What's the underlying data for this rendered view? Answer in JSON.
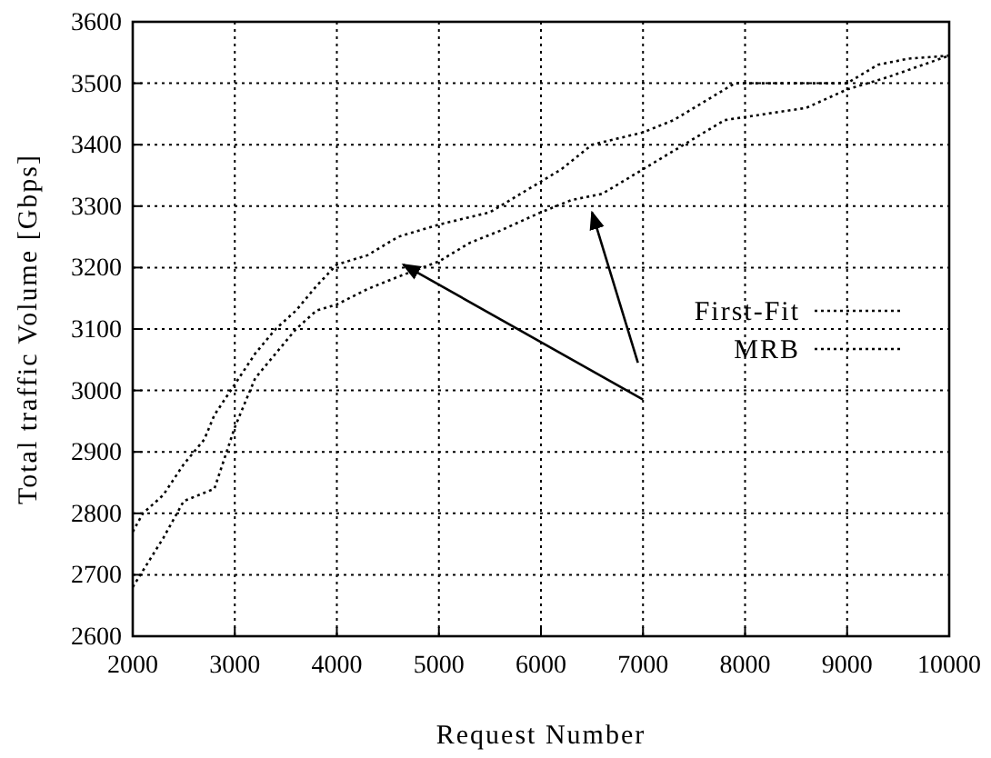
{
  "chart_data": {
    "type": "line",
    "xlabel": "Request Number",
    "ylabel": "Total traffic Volume [Gbps]",
    "xlim": [
      2000,
      10000
    ],
    "xticks": [
      2000,
      3000,
      4000,
      5000,
      6000,
      7000,
      8000,
      9000,
      10000
    ],
    "ylim": [
      2600,
      3600
    ],
    "yticks": [
      2600,
      2700,
      2800,
      2900,
      3000,
      3100,
      3200,
      3300,
      3400,
      3500,
      3600
    ],
    "grid": true,
    "legend": "right",
    "line_style": "dotted",
    "series": [
      {
        "name": "First-Fit",
        "color": "#000000",
        "x": [
          2000,
          2300,
          2500,
          2800,
          3000,
          3200,
          3400,
          3600,
          3800,
          4000,
          4300,
          4600,
          5000,
          5300,
          5600,
          6000,
          6300,
          6600,
          7000,
          7400,
          7800,
          8200,
          8600,
          9000,
          9400,
          10000
        ],
        "values": [
          2680,
          2760,
          2820,
          2840,
          2940,
          3020,
          3060,
          3100,
          3130,
          3140,
          3165,
          3185,
          3210,
          3240,
          3260,
          3290,
          3310,
          3320,
          3360,
          3400,
          3440,
          3450,
          3460,
          3490,
          3510,
          3545
        ]
      },
      {
        "name": "MRB",
        "color": "#000000",
        "x": [
          2000,
          2100,
          2300,
          2500,
          2700,
          2800,
          3000,
          3200,
          3400,
          3600,
          3800,
          4000,
          4300,
          4600,
          5000,
          5500,
          6000,
          6200,
          6500,
          7000,
          7300,
          7600,
          7900,
          8500,
          9000,
          9300,
          9600,
          10000
        ],
        "values": [
          2770,
          2800,
          2830,
          2880,
          2920,
          2960,
          3010,
          3060,
          3100,
          3130,
          3170,
          3205,
          3220,
          3250,
          3270,
          3290,
          3340,
          3360,
          3400,
          3420,
          3440,
          3470,
          3500,
          3500,
          3500,
          3530,
          3540,
          3545
        ]
      }
    ]
  }
}
